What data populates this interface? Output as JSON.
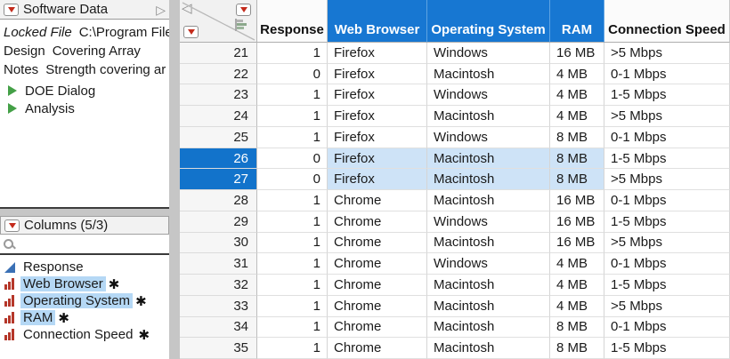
{
  "icons": {
    "red_triangle_menu": "▼",
    "panel_disclosure": "▷",
    "data_panel_collapse": "◁",
    "design_role_asterisk": "✱",
    "search": "magnifier",
    "continuous_column": "blue-right-triangle",
    "nominal_column": "red-bar-chart",
    "table_script": "green-right-triangle",
    "row_states": "flag-bars"
  },
  "colors": {
    "header_selected_blue": "#1777D2",
    "row_selected_blue": "#1273CB",
    "cell_selected_light_blue": "#CEE3F7",
    "list_selection_blue": "#B5D8F5",
    "nominal_icon_red": "#B5372A",
    "continuous_icon_blue": "#3A70B5",
    "script_icon_green": "#44A047",
    "menu_triangle_red": "#C42B1C"
  },
  "sidebar": {
    "table_panel": {
      "title": "Software Data",
      "properties": [
        {
          "label": "Locked File",
          "value": "C:\\Program File",
          "italic": true
        },
        {
          "label": "Design",
          "value": "Covering Array",
          "italic": false
        },
        {
          "label": "Notes",
          "value": "Strength covering ar",
          "italic": false
        }
      ],
      "scripts": [
        {
          "label": "DOE Dialog"
        },
        {
          "label": "Analysis"
        }
      ]
    },
    "columns_panel": {
      "title": "Columns (5/3)",
      "search_value": "",
      "items": [
        {
          "label": "Response",
          "type": "continuous",
          "selected": false,
          "asterisk": false
        },
        {
          "label": "Web Browser",
          "type": "nominal",
          "selected": true,
          "asterisk": true
        },
        {
          "label": "Operating System",
          "type": "nominal",
          "selected": true,
          "asterisk": true
        },
        {
          "label": "RAM",
          "type": "nominal",
          "selected": true,
          "asterisk": true
        },
        {
          "label": "Connection Speed",
          "type": "nominal",
          "selected": false,
          "asterisk": true
        }
      ]
    }
  },
  "table": {
    "columns": [
      {
        "label": "Response",
        "selected": false
      },
      {
        "label": "Web Browser",
        "selected": true
      },
      {
        "label": "Operating System",
        "selected": true
      },
      {
        "label": "RAM",
        "selected": true
      },
      {
        "label": "Connection Speed",
        "selected": false
      }
    ],
    "rows": [
      {
        "n": 21,
        "selected": false,
        "cells": [
          "1",
          "Firefox",
          "Windows",
          "16 MB",
          ">5 Mbps"
        ]
      },
      {
        "n": 22,
        "selected": false,
        "cells": [
          "0",
          "Firefox",
          "Macintosh",
          "4 MB",
          "0-1 Mbps"
        ]
      },
      {
        "n": 23,
        "selected": false,
        "cells": [
          "1",
          "Firefox",
          "Windows",
          "4 MB",
          "1-5 Mbps"
        ]
      },
      {
        "n": 24,
        "selected": false,
        "cells": [
          "1",
          "Firefox",
          "Macintosh",
          "4 MB",
          ">5 Mbps"
        ]
      },
      {
        "n": 25,
        "selected": false,
        "cells": [
          "1",
          "Firefox",
          "Windows",
          "8 MB",
          "0-1 Mbps"
        ]
      },
      {
        "n": 26,
        "selected": true,
        "cells": [
          "0",
          "Firefox",
          "Macintosh",
          "8 MB",
          "1-5 Mbps"
        ]
      },
      {
        "n": 27,
        "selected": true,
        "cells": [
          "0",
          "Firefox",
          "Macintosh",
          "8 MB",
          ">5 Mbps"
        ]
      },
      {
        "n": 28,
        "selected": false,
        "cells": [
          "1",
          "Chrome",
          "Macintosh",
          "16 MB",
          "0-1 Mbps"
        ]
      },
      {
        "n": 29,
        "selected": false,
        "cells": [
          "1",
          "Chrome",
          "Windows",
          "16 MB",
          "1-5 Mbps"
        ]
      },
      {
        "n": 30,
        "selected": false,
        "cells": [
          "1",
          "Chrome",
          "Macintosh",
          "16 MB",
          ">5 Mbps"
        ]
      },
      {
        "n": 31,
        "selected": false,
        "cells": [
          "1",
          "Chrome",
          "Windows",
          "4 MB",
          "0-1 Mbps"
        ]
      },
      {
        "n": 32,
        "selected": false,
        "cells": [
          "1",
          "Chrome",
          "Macintosh",
          "4 MB",
          "1-5 Mbps"
        ]
      },
      {
        "n": 33,
        "selected": false,
        "cells": [
          "1",
          "Chrome",
          "Macintosh",
          "4 MB",
          ">5 Mbps"
        ]
      },
      {
        "n": 34,
        "selected": false,
        "cells": [
          "1",
          "Chrome",
          "Macintosh",
          "8 MB",
          "0-1 Mbps"
        ]
      },
      {
        "n": 35,
        "selected": false,
        "cells": [
          "1",
          "Chrome",
          "Macintosh",
          "8 MB",
          "1-5 Mbps"
        ]
      }
    ]
  }
}
